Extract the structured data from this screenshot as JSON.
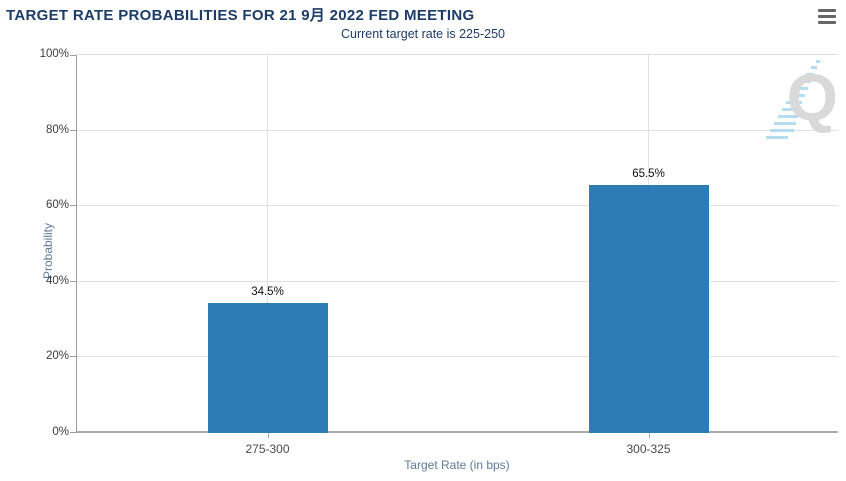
{
  "header": {
    "title": "TARGET RATE PROBABILITIES FOR 21 9月 2022 FED MEETING",
    "menu_icon": "hamburger-icon"
  },
  "subtitle": "Current target rate is 225-250",
  "watermark_letter": "Q",
  "colors": {
    "bar": "#2d7cb5",
    "title_text": "#1d3c68",
    "gridline": "#e2e2e2",
    "axis_line": "#9c9c9c",
    "axis_title_text": "#5f7a96",
    "watermark_gray": "#d9d9d9",
    "watermark_blue": "#b5ddf0"
  },
  "chart_data": {
    "type": "bar",
    "title": "TARGET RATE PROBABILITIES FOR 21 9月 2022 FED MEETING",
    "subtitle": "Current target rate is 225-250",
    "categories": [
      "275-300",
      "300-325"
    ],
    "values": [
      34.5,
      65.5
    ],
    "value_labels": [
      "34.5%",
      "65.5%"
    ],
    "xlabel": "Target Rate (in bps)",
    "ylabel": "Probability",
    "ylim": [
      0,
      100
    ],
    "yticks": [
      0,
      20,
      40,
      60,
      80,
      100
    ],
    "ytick_labels": [
      "0%",
      "20%",
      "40%",
      "60%",
      "80%",
      "100%"
    ],
    "grid": true,
    "legend": "none",
    "bar_color": "#2d7cb5"
  }
}
